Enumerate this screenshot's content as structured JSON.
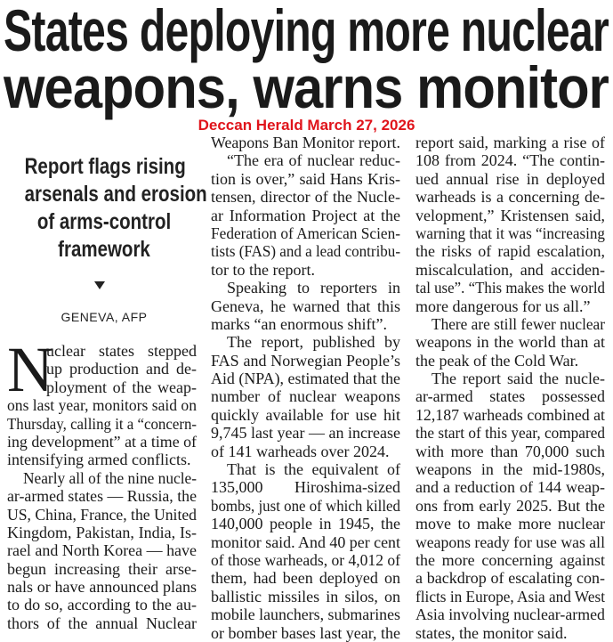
{
  "headline": [
    "States deploying more nuclear",
    "weapons, warns monitor"
  ],
  "dateline": "Deccan Herald March 27, 2026",
  "deck": [
    "Report flags rising",
    "arsenals and erosion",
    "of arms-control",
    "framework"
  ],
  "byline": "GENEVA, AFP",
  "drop_cap": "N",
  "accent_color": "#e0141b",
  "columns": [
    [
      {
        "lines": [
          "uclear states stepped",
          "up production and de-",
          "ployment of the weap-",
          "ons last year, monitors said on",
          "Thursday, calling it a “concern-",
          "ing development” at a time of",
          "intensifying armed conflicts."
        ],
        "drop": true
      },
      {
        "lines": [
          "Nearly all of the nine nucle-",
          "ar-armed states — Russia, the",
          "US, China, France, the United",
          "Kingdom, Pakistan, India, Is-",
          "rael and North Korea — have",
          "begun increasing their arse-",
          "nals or have announced plans",
          "to do so, according to the au-",
          "thors of the annual Nuclear"
        ],
        "cont": true
      }
    ],
    [
      {
        "lines": [
          "Weapons Ban Monitor report."
        ],
        "noindent": true
      },
      {
        "lines": [
          "“The era of nuclear reduc-",
          "tion is over,” said Hans Kris-",
          "tensen, director of the Nucle-",
          "ar Information Project at the",
          "Federation of American Scien-",
          "tists (FAS) and a lead contribu-",
          "tor to the report."
        ]
      },
      {
        "lines": [
          "Speaking to reporters in",
          "Geneva, he warned that this",
          "marks “an enormous shift”."
        ]
      },
      {
        "lines": [
          "The report, published by",
          "FAS and Norwegian People’s",
          "Aid (NPA), estimated that the",
          "number of nuclear weapons",
          "quickly available for use hit",
          "9,745 last year — an increase",
          "of 141 warheads over 2024."
        ]
      },
      {
        "lines": [
          "That is the equivalent of",
          "135,000 Hiroshima-sized",
          "bombs, just one of which killed",
          "140,000 people in 1945, the",
          "monitor said. And 40 per cent",
          "of those warheads, or 4,012 of",
          "them, had been deployed on",
          "ballistic missiles in silos, on",
          "mobile launchers, submarines",
          "or bomber bases last year, the"
        ],
        "cont": true
      }
    ],
    [
      {
        "lines": [
          "report said, marking a rise of",
          "108 from 2024. “The contin-",
          "ued annual rise in deployed",
          "warheads is a concerning de-",
          "velopment,” Kristensen said,",
          "warning that it was “increasing",
          "the risks of rapid escalation,",
          "miscalculation, and acciden-",
          "tal use”. “This makes the world",
          "more dangerous for us all.”"
        ],
        "noindent": true
      },
      {
        "lines": [
          "There are still fewer nuclear",
          "weapons in the world than at",
          "the peak of the Cold War."
        ]
      },
      {
        "lines": [
          "The report said the nucle-",
          "ar-armed states possessed",
          "12,187 warheads combined at",
          "the start of this year, compared",
          "with more than 70,000 such",
          "weapons in the mid-1980s,",
          "and a reduction of 144 weap-",
          "ons from early 2025. But the",
          "move to make more nuclear",
          "weapons ready for use was all",
          "the more concerning against",
          "a backdrop of escalating con-",
          "flicts in Europe, Asia and West",
          "Asia involving nuclear-armed",
          "states, the monitor said."
        ]
      }
    ]
  ]
}
